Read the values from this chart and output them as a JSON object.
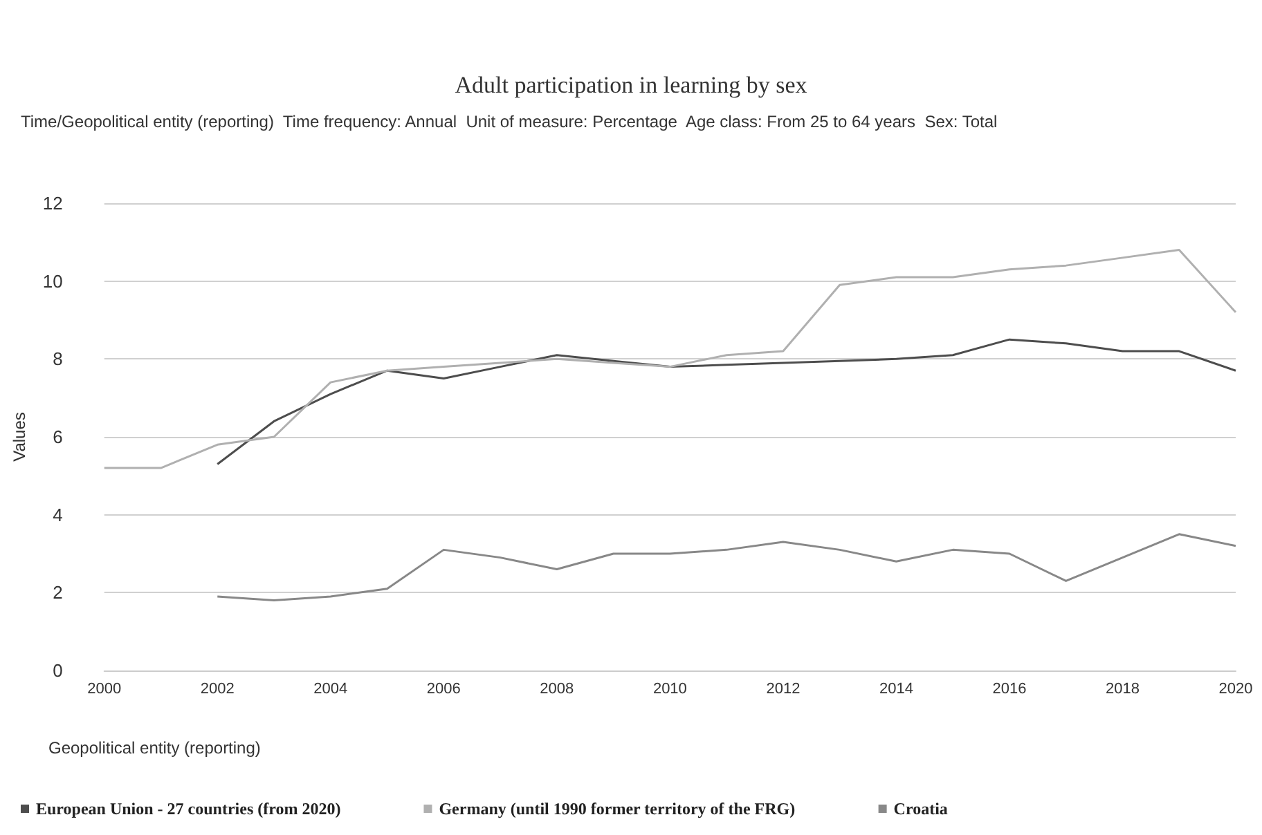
{
  "chart_data": {
    "type": "line",
    "title": "Adult participation in learning by sex",
    "subtitle": "Time/Geopolitical entity (reporting)  Time frequency: Annual  Unit of measure: Percentage  Age class: From 25 to 64 years  Sex: Total",
    "xlabel": "Geopolitical entity (reporting)",
    "ylabel": "Values",
    "x": [
      2000,
      2001,
      2002,
      2003,
      2004,
      2005,
      2006,
      2007,
      2008,
      2009,
      2010,
      2011,
      2012,
      2013,
      2014,
      2015,
      2016,
      2017,
      2018,
      2019,
      2020
    ],
    "series": [
      {
        "name": "European Union - 27 countries (from 2020)",
        "color": "#4d4d4d",
        "values": [
          null,
          null,
          5.3,
          6.4,
          7.1,
          7.7,
          7.5,
          7.8,
          8.1,
          7.95,
          7.8,
          7.85,
          7.9,
          7.95,
          8.0,
          8.1,
          8.5,
          8.4,
          8.2,
          8.2,
          7.7
        ]
      },
      {
        "name": "Germany (until 1990 former territory of the FRG)",
        "color": "#b0b0b0",
        "values": [
          5.2,
          5.2,
          5.8,
          6.0,
          7.4,
          7.7,
          7.8,
          7.9,
          8.0,
          7.9,
          7.8,
          8.1,
          8.2,
          9.9,
          10.1,
          10.1,
          10.3,
          10.4,
          10.6,
          10.8,
          9.2
        ]
      },
      {
        "name": "Croatia",
        "color": "#888888",
        "values": [
          null,
          null,
          1.9,
          1.8,
          1.9,
          2.1,
          3.1,
          2.9,
          2.6,
          3.0,
          3.0,
          3.1,
          3.3,
          3.1,
          2.8,
          3.1,
          3.0,
          2.3,
          2.9,
          3.5,
          3.2
        ]
      }
    ],
    "xlim": [
      2000,
      2020
    ],
    "xticks": [
      2000,
      2002,
      2004,
      2006,
      2008,
      2010,
      2012,
      2014,
      2016,
      2018,
      2020
    ],
    "ylim": [
      0,
      12
    ],
    "yticks": [
      0,
      2,
      4,
      6,
      8,
      10,
      12
    ],
    "grid": "y",
    "legend": "bottom left",
    "marker": "none",
    "line_style": "solid"
  }
}
